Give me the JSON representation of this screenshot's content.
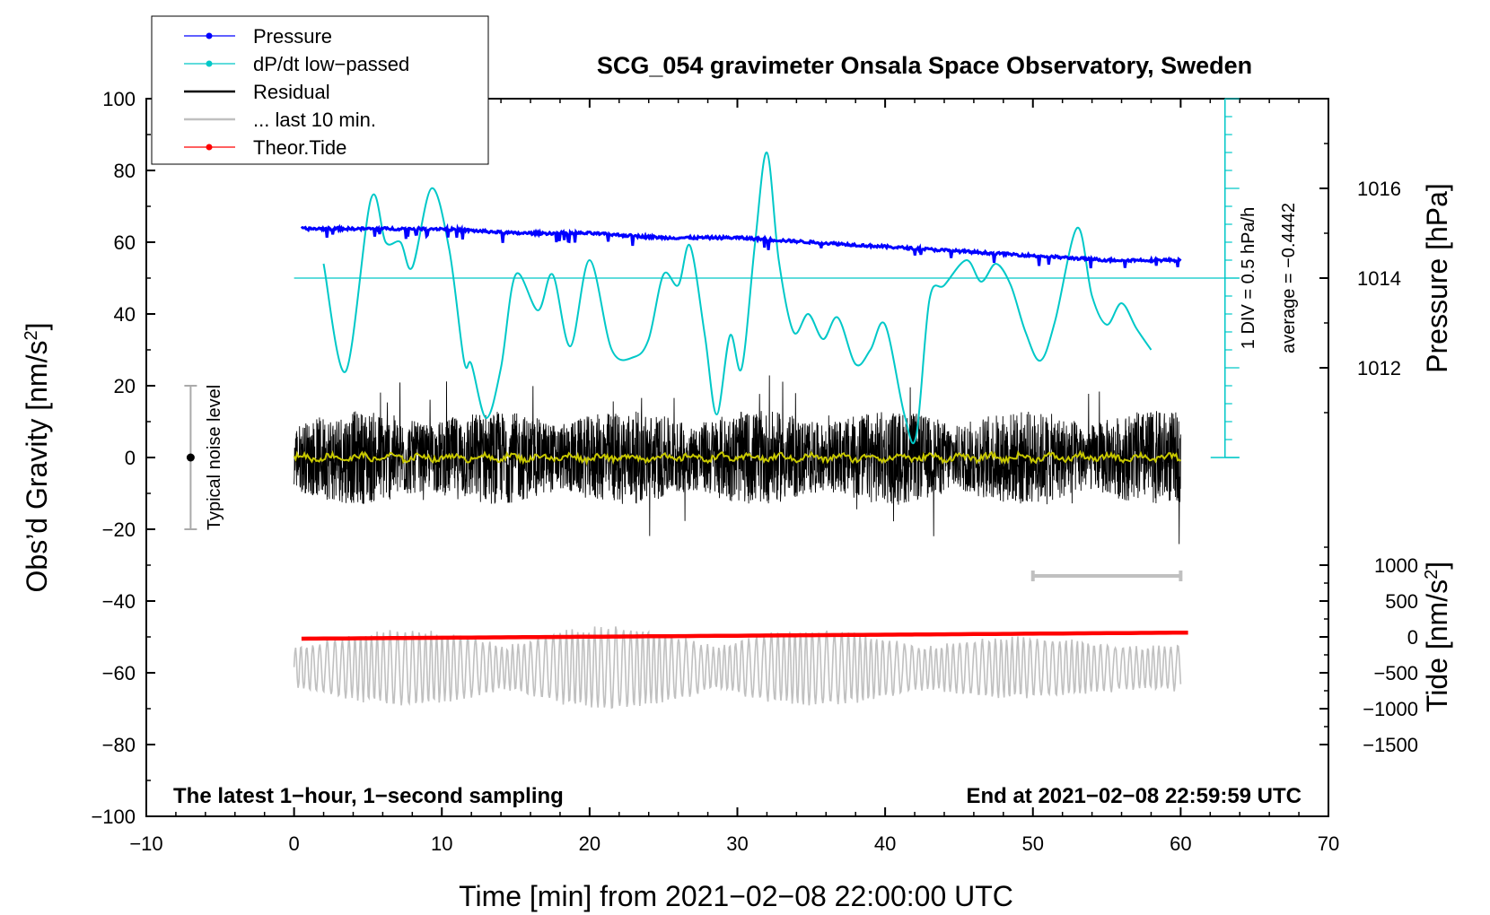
{
  "chart_data": {
    "type": "line",
    "title": "SCG_054 gravimeter Onsala Space Observatory, Sweden",
    "xlabel": "Time [min] from 2021−02−08 22:00:00 UTC",
    "ylabel_main": "Obs’d Gravity [nm/s",
    "ylabel_main_sup": "2",
    "ylabel_main_close": "]",
    "ylabel_pressure": "Pressure [hPa]",
    "ylabel_tide": "Tide [nm/s",
    "ylabel_tide_sup": "2",
    "ylabel_tide_close": "]",
    "xlim": [
      -10,
      70
    ],
    "ylim": [
      -100,
      100
    ],
    "x_ticks": [
      -10,
      0,
      10,
      20,
      30,
      40,
      50,
      60,
      70
    ],
    "x_tick_labels": [
      "−10",
      "0",
      "10",
      "20",
      "30",
      "40",
      "50",
      "60",
      "70"
    ],
    "y_ticks": [
      -100,
      -80,
      -60,
      -40,
      -20,
      0,
      20,
      40,
      60,
      80,
      100
    ],
    "y_tick_labels": [
      "−100",
      "−80",
      "−60",
      "−40",
      "−20",
      "0",
      "20",
      "40",
      "60",
      "80",
      "100"
    ],
    "pressure_axis": {
      "ticks": [
        1012,
        1014,
        1016
      ],
      "tick_labels": [
        "1012",
        "1014",
        "1016"
      ],
      "y_of_1014": 50,
      "units_per_hpa": 12.5
    },
    "tide_axis": {
      "ticks": [
        1000,
        500,
        0,
        -500,
        -1000,
        -1500
      ],
      "tick_labels": [
        "1000",
        "500",
        "0",
        "−500",
        "−1000",
        "−1500"
      ],
      "y_of_zero": -50,
      "units_per_nms2": 0.02
    },
    "legend": {
      "position": "top-left",
      "entries": [
        {
          "label": "Pressure",
          "color": "#0000ff",
          "marker": true
        },
        {
          "label": "dP/dt low−passed",
          "color": "#00c8c8",
          "marker": true
        },
        {
          "label": "Residual",
          "color": "#000000",
          "marker": false
        },
        {
          "label": "... last 10 min.",
          "color": "#c0c0c0",
          "marker": false
        },
        {
          "label": "Theor.Tide",
          "color": "#ff0000",
          "marker": true
        }
      ]
    },
    "dpdt_scale": {
      "x": 63,
      "y_range": [
        0,
        100
      ],
      "label": "1 DIV = 0.5 hPa/h",
      "average_label": "average = −0.4442",
      "zero_line_y": 50
    },
    "noise_bar": {
      "x": -7,
      "y_range": [
        -20,
        20
      ],
      "label": "Typical noise level"
    },
    "ten_min_bar": {
      "x_range": [
        50,
        60
      ],
      "y": -33
    },
    "footer_left": "The latest 1−hour, 1−second sampling",
    "footer_right": "End at 2021−02−08 22:59:59 UTC",
    "series": [
      {
        "name": "Pressure",
        "color": "#0000ff",
        "unit": "hPa",
        "x": [
          0.5,
          5,
          10,
          15,
          20,
          25,
          30,
          35,
          40,
          45,
          50,
          55,
          60
        ],
        "values": [
          1015.1,
          1015.1,
          1015.1,
          1015.0,
          1015.0,
          1014.9,
          1014.9,
          1014.8,
          1014.7,
          1014.6,
          1014.5,
          1014.4,
          1014.4
        ]
      },
      {
        "name": "dP/dt low-passed",
        "color": "#00c8c8",
        "x": [
          2,
          3.5,
          5.2,
          6.2,
          7.2,
          8,
          9.3,
          10.5,
          11.5,
          12,
          13,
          14,
          15,
          16.5,
          17.5,
          18.7,
          20,
          21.5,
          23,
          24,
          25,
          26,
          26.8,
          27.8,
          28.6,
          29.5,
          30.3,
          31.2,
          32,
          32.8,
          33.8,
          34.8,
          35.8,
          36.8,
          38,
          39,
          40,
          41.3,
          42.1,
          43,
          44,
          45.5,
          46.5,
          47.5,
          48.5,
          49.5,
          50.5,
          51.5,
          53,
          54,
          55,
          56,
          57,
          58
        ],
        "values": [
          54,
          24,
          72,
          60,
          60,
          53,
          75,
          58,
          27,
          26,
          11,
          25,
          51,
          41,
          51,
          31,
          55,
          30,
          28,
          33,
          51,
          48,
          59,
          34,
          12,
          34,
          25,
          60,
          85,
          55,
          35,
          40,
          33,
          39,
          26,
          30,
          37,
          12,
          6,
          44,
          48,
          55,
          49,
          54,
          48,
          35,
          27,
          38,
          64,
          45,
          37,
          43,
          36,
          30
        ]
      },
      {
        "name": "Residual",
        "color": "#000000",
        "x_range": [
          0,
          60
        ],
        "amplitude_range": [
          -28,
          29
        ]
      },
      {
        "name": "Residual smoothed",
        "color": "#c8c800",
        "x_range": [
          0,
          60
        ],
        "mean": 0
      },
      {
        "name": "... last 10 min.",
        "color": "#c0c0c0",
        "x_range": [
          0,
          60
        ],
        "unit": "nm/s2",
        "amplitude_range": [
          -1150,
          300
        ]
      },
      {
        "name": "Theor.Tide",
        "color": "#ff0000",
        "unit": "nm/s2",
        "x": [
          0.5,
          60.5
        ],
        "values": [
          -25,
          60
        ]
      }
    ]
  }
}
